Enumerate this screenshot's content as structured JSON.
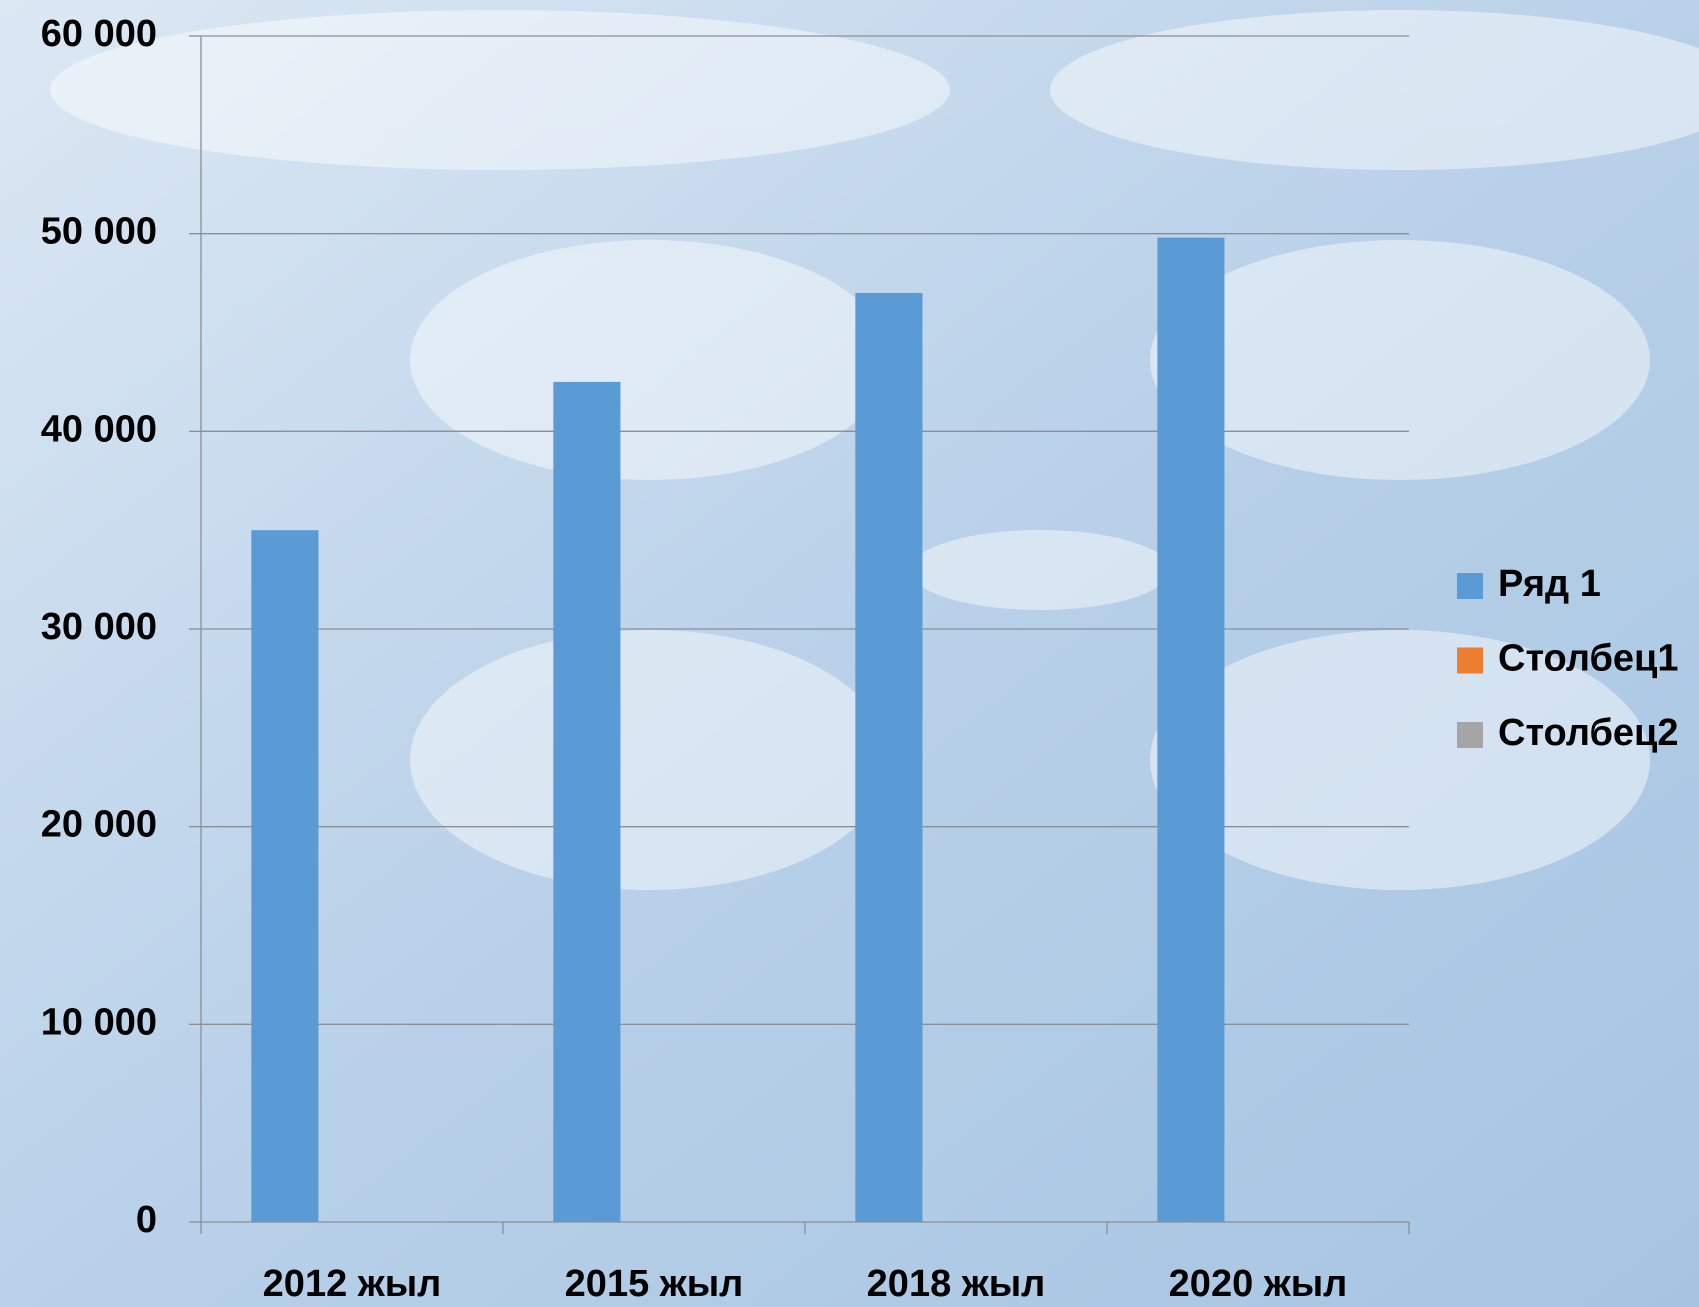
{
  "chart_data": {
    "type": "bar",
    "categories": [
      "2012 жыл",
      "2015 жыл",
      "2018 жыл",
      "2020 жыл"
    ],
    "series": [
      {
        "name": "Ряд 1",
        "color": "#5b9bd5",
        "values": [
          35000,
          42500,
          47000,
          49800
        ]
      },
      {
        "name": "Столбец1",
        "color": "#ed7d31",
        "values": [
          null,
          null,
          null,
          null
        ]
      },
      {
        "name": "Столбец2",
        "color": "#a5a5a5",
        "values": [
          null,
          null,
          null,
          null
        ]
      }
    ],
    "ylim": [
      0,
      60000
    ],
    "yticks": [
      0,
      {
        "value": 10000,
        "label": "10 000"
      },
      {
        "value": 20000,
        "label": "20 000"
      },
      {
        "value": 30000,
        "label": "30 000"
      },
      {
        "value": 40000,
        "label": "40 000"
      },
      {
        "value": 50000,
        "label": "50 000"
      },
      {
        "value": 60000,
        "label": "60 000"
      }
    ],
    "grid": true,
    "legend": "right"
  }
}
